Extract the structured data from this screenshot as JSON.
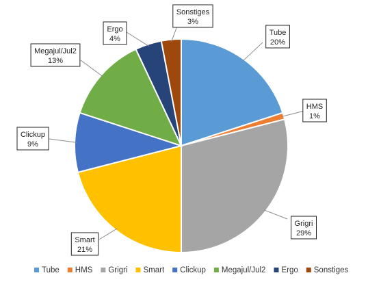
{
  "chart_data": {
    "type": "pie",
    "title": "",
    "legend_position": "bottom",
    "slices": [
      {
        "label": "Tube",
        "value": 20,
        "pct_label": "20%",
        "color": "#5B9BD5"
      },
      {
        "label": "HMS",
        "value": 1,
        "pct_label": "1%",
        "color": "#ED7D31"
      },
      {
        "label": "Grigri",
        "value": 29,
        "pct_label": "29%",
        "color": "#A5A5A5"
      },
      {
        "label": "Smart",
        "value": 21,
        "pct_label": "21%",
        "color": "#FFC000"
      },
      {
        "label": "Clickup",
        "value": 9,
        "pct_label": "9%",
        "color": "#4472C4"
      },
      {
        "label": "Megajul/Jul2",
        "value": 13,
        "pct_label": "13%",
        "color": "#70AD47"
      },
      {
        "label": "Ergo",
        "value": 4,
        "pct_label": "4%",
        "color": "#264478"
      },
      {
        "label": "Sonstiges",
        "value": 3,
        "pct_label": "3%",
        "color": "#9E480E"
      }
    ]
  }
}
